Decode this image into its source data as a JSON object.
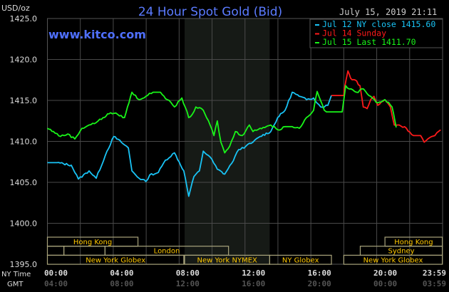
{
  "chart_data": {
    "type": "line",
    "title": "24 Hour Spot Gold (Bid)",
    "watermark": "www.kitco.com",
    "timestamp": "July 15, 2019 21:11",
    "ylabel": "USD/oz",
    "ylim": [
      1395,
      1425
    ],
    "yticks": [
      "1425.0",
      "1420.0",
      "1415.0",
      "1410.0",
      "1405.0",
      "1400.0",
      "1395.0"
    ],
    "yticks_values": [
      1425,
      1420,
      1415,
      1410,
      1405,
      1400,
      1395
    ],
    "xlim": [
      "00:00",
      "23:59"
    ],
    "x_row_labels": {
      "ny": "NY Time",
      "gmt": "GMT"
    },
    "xticks_ny": [
      "00:00",
      "04:00",
      "08:00",
      "12:00",
      "16:00",
      "20:00",
      "23:59"
    ],
    "xticks_gmt": [
      "04:00",
      "08:00",
      "12:00",
      "16:00",
      "20:00",
      "00:00",
      "03:59"
    ],
    "grid": true,
    "legend_placement": "top-right",
    "shaded_period": [
      "08:20",
      "13:30"
    ],
    "series": [
      {
        "name": "Jul 12 NY close 1415.60",
        "color": "#19c3f5",
        "points": [
          [
            "00:00",
            1407.4
          ],
          [
            "00:35",
            1407.4
          ],
          [
            "01:27",
            1407.1
          ],
          [
            "01:53",
            1405.4
          ],
          [
            "02:32",
            1406.4
          ],
          [
            "02:58",
            1405.5
          ],
          [
            "03:37",
            1408.8
          ],
          [
            "04:02",
            1410.6
          ],
          [
            "04:29",
            1409.9
          ],
          [
            "04:55",
            1409.2
          ],
          [
            "05:08",
            1406.4
          ],
          [
            "05:34",
            1405.5
          ],
          [
            "05:59",
            1405.1
          ],
          [
            "06:13",
            1405.9
          ],
          [
            "06:44",
            1406.2
          ],
          [
            "07:10",
            1407.7
          ],
          [
            "07:43",
            1408.6
          ],
          [
            "08:17",
            1406.4
          ],
          [
            "08:35",
            1403.3
          ],
          [
            "08:54",
            1405.7
          ],
          [
            "09:14",
            1406.4
          ],
          [
            "09:28",
            1408.8
          ],
          [
            "09:53",
            1408.1
          ],
          [
            "10:19",
            1406.6
          ],
          [
            "10:46",
            1406.0
          ],
          [
            "11:11",
            1407.3
          ],
          [
            "11:37",
            1409.0
          ],
          [
            "12:03",
            1409.4
          ],
          [
            "12:29",
            1409.9
          ],
          [
            "12:55",
            1410.6
          ],
          [
            "13:34",
            1411.2
          ],
          [
            "13:59",
            1412.9
          ],
          [
            "14:26",
            1413.8
          ],
          [
            "14:52",
            1416.0
          ],
          [
            "15:18",
            1415.5
          ],
          [
            "15:44",
            1415.1
          ],
          [
            "16:10",
            1415.3
          ],
          [
            "16:36",
            1414.2
          ],
          [
            "17:02",
            1414.4
          ],
          [
            "17:15",
            1415.6
          ]
        ]
      },
      {
        "name": "Jul 14 Sunday",
        "color": "#ff1a1a",
        "points": [
          [
            "17:15",
            1415.6
          ],
          [
            "18:00",
            1415.6
          ],
          [
            "18:02",
            1416.4
          ],
          [
            "18:15",
            1418.6
          ],
          [
            "18:25",
            1417.7
          ],
          [
            "18:41",
            1417.5
          ],
          [
            "18:59",
            1416.8
          ],
          [
            "19:11",
            1414.2
          ],
          [
            "19:25",
            1414.0
          ],
          [
            "19:38",
            1415.1
          ],
          [
            "19:50",
            1415.5
          ],
          [
            "20:04",
            1414.4
          ],
          [
            "20:30",
            1415.1
          ],
          [
            "20:50",
            1414.2
          ],
          [
            "21:04",
            1412.0
          ],
          [
            "21:22",
            1412.0
          ],
          [
            "21:48",
            1411.6
          ],
          [
            "22:14",
            1410.7
          ],
          [
            "22:40",
            1410.7
          ],
          [
            "22:53",
            1409.9
          ],
          [
            "23:06",
            1410.3
          ],
          [
            "23:32",
            1410.7
          ],
          [
            "23:53",
            1411.4
          ]
        ]
      },
      {
        "name": "Jul 15 Last 1411.70",
        "color": "#19f519",
        "points": [
          [
            "00:00",
            1411.6
          ],
          [
            "00:22",
            1411.2
          ],
          [
            "00:48",
            1410.6
          ],
          [
            "01:14",
            1410.9
          ],
          [
            "01:40",
            1410.3
          ],
          [
            "02:06",
            1411.6
          ],
          [
            "02:32",
            1412.0
          ],
          [
            "02:58",
            1412.3
          ],
          [
            "03:23",
            1412.9
          ],
          [
            "03:50",
            1413.5
          ],
          [
            "04:16",
            1413.3
          ],
          [
            "04:41",
            1412.9
          ],
          [
            "05:08",
            1416.0
          ],
          [
            "05:34",
            1415.1
          ],
          [
            "05:59",
            1415.5
          ],
          [
            "06:25",
            1416.0
          ],
          [
            "06:52",
            1416.0
          ],
          [
            "07:17",
            1415.1
          ],
          [
            "07:43",
            1414.2
          ],
          [
            "08:10",
            1415.3
          ],
          [
            "08:22",
            1414.2
          ],
          [
            "08:35",
            1412.9
          ],
          [
            "08:48",
            1413.3
          ],
          [
            "09:01",
            1414.2
          ],
          [
            "09:28",
            1413.8
          ],
          [
            "09:53",
            1412.0
          ],
          [
            "10:07",
            1410.7
          ],
          [
            "10:19",
            1412.5
          ],
          [
            "10:32",
            1409.9
          ],
          [
            "10:46",
            1408.6
          ],
          [
            "11:04",
            1409.4
          ],
          [
            "11:25",
            1411.2
          ],
          [
            "11:50",
            1410.7
          ],
          [
            "12:16",
            1412.0
          ],
          [
            "12:29",
            1411.2
          ],
          [
            "12:55",
            1411.6
          ],
          [
            "13:34",
            1412.0
          ],
          [
            "14:00",
            1411.4
          ],
          [
            "14:26",
            1411.8
          ],
          [
            "14:52",
            1411.8
          ],
          [
            "15:18",
            1411.6
          ],
          [
            "15:44",
            1412.9
          ],
          [
            "16:10",
            1413.8
          ],
          [
            "16:23",
            1416.1
          ],
          [
            "16:49",
            1413.8
          ],
          [
            "16:57",
            1413.6
          ],
          [
            "17:54",
            1413.6
          ],
          [
            "18:07",
            1416.8
          ],
          [
            "18:20",
            1416.4
          ],
          [
            "18:46",
            1416.0
          ],
          [
            "19:12",
            1416.4
          ],
          [
            "19:38",
            1415.5
          ],
          [
            "20:04",
            1414.7
          ],
          [
            "20:30",
            1415.1
          ],
          [
            "20:56",
            1414.2
          ],
          [
            "21:11",
            1411.7
          ]
        ]
      }
    ],
    "sessions": [
      {
        "label": "Hong Kong",
        "row": 0,
        "start": "00:00",
        "end": "05:30"
      },
      {
        "label": "",
        "row": 1,
        "start": "00:00",
        "end": "01:00"
      },
      {
        "label": "",
        "row": 1,
        "start": "01:00",
        "end": "03:30"
      },
      {
        "label": "London",
        "row": 1,
        "start": "03:30",
        "end": "11:00"
      },
      {
        "label": "New York Globex",
        "row": 2,
        "start": "00:00",
        "end": "08:17"
      },
      {
        "label": "New York NYMEX",
        "row": 2,
        "start": "08:20",
        "end": "13:30"
      },
      {
        "label": "NY Globex",
        "row": 2,
        "start": "13:30",
        "end": "17:15"
      },
      {
        "label": "Hong Kong",
        "row": 0,
        "start": "20:30",
        "end": "23:59"
      },
      {
        "label": "Sydney",
        "row": 1,
        "start": "19:00",
        "end": "23:59"
      },
      {
        "label": "New York Globex",
        "row": 2,
        "start": "18:00",
        "end": "23:59"
      }
    ]
  }
}
